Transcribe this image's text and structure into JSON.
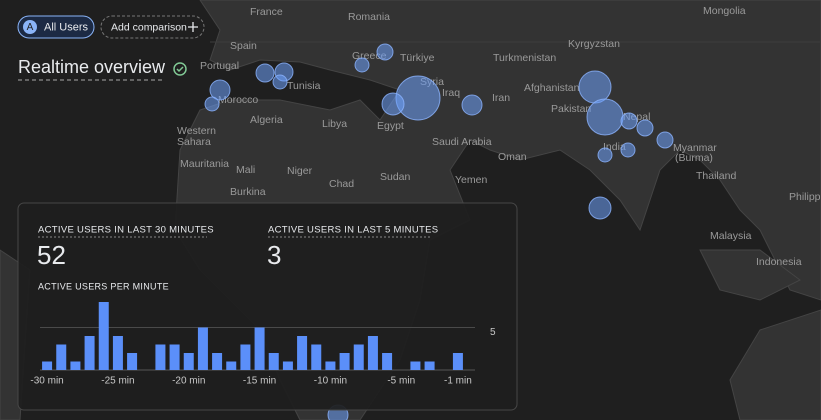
{
  "header": {
    "segment_badge": "A",
    "segment": "All Users",
    "add_comparison": "Add comparison",
    "title": "Realtime overview"
  },
  "map": {
    "labels": [
      "France",
      "Romania",
      "Mongolia",
      "Spain",
      "Kyrgyzstan",
      "Greece",
      "Türkiye",
      "Turkmenistan",
      "Portugal",
      "Tunisia",
      "Syria",
      "Afghanistan",
      "Morocco",
      "Iraq",
      "Iran",
      "Pakistan",
      "Nepal",
      "Algeria",
      "Libya",
      "Egypt",
      "Western",
      "Sahara",
      "Saudi Arabia",
      "India",
      "Oman",
      "Myanmar",
      "(Burma)",
      "Mauritania",
      "Mali",
      "Niger",
      "Chad",
      "Sudan",
      "Yemen",
      "Thailand",
      "Philipp",
      "Burkina",
      "Malaysia",
      "Indonesia"
    ]
  },
  "card": {
    "metrics": [
      {
        "label": "ACTIVE USERS IN LAST 30 MINUTES",
        "value": 52
      },
      {
        "label": "ACTIVE USERS IN LAST 5 MINUTES",
        "value": 3
      }
    ],
    "chart_title": "ACTIVE USERS PER MINUTE"
  },
  "chart_data": {
    "type": "bar",
    "categories": [
      "-30 min",
      null,
      null,
      null,
      null,
      "-25 min",
      null,
      null,
      null,
      null,
      "-20 min",
      null,
      null,
      null,
      null,
      "-15 min",
      null,
      null,
      null,
      null,
      "-10 min",
      null,
      null,
      null,
      null,
      "-5 min",
      null,
      null,
      null,
      "-1 min"
    ],
    "values": [
      1,
      3,
      1,
      4,
      8,
      4,
      2,
      0,
      3,
      3,
      2,
      5,
      2,
      1,
      3,
      5,
      2,
      1,
      4,
      3,
      1,
      2,
      3,
      4,
      2,
      0,
      1,
      1,
      0,
      2
    ],
    "color": "#5b8ff9",
    "ylim": [
      0,
      8
    ],
    "yticks": [
      5
    ],
    "grid": true
  }
}
